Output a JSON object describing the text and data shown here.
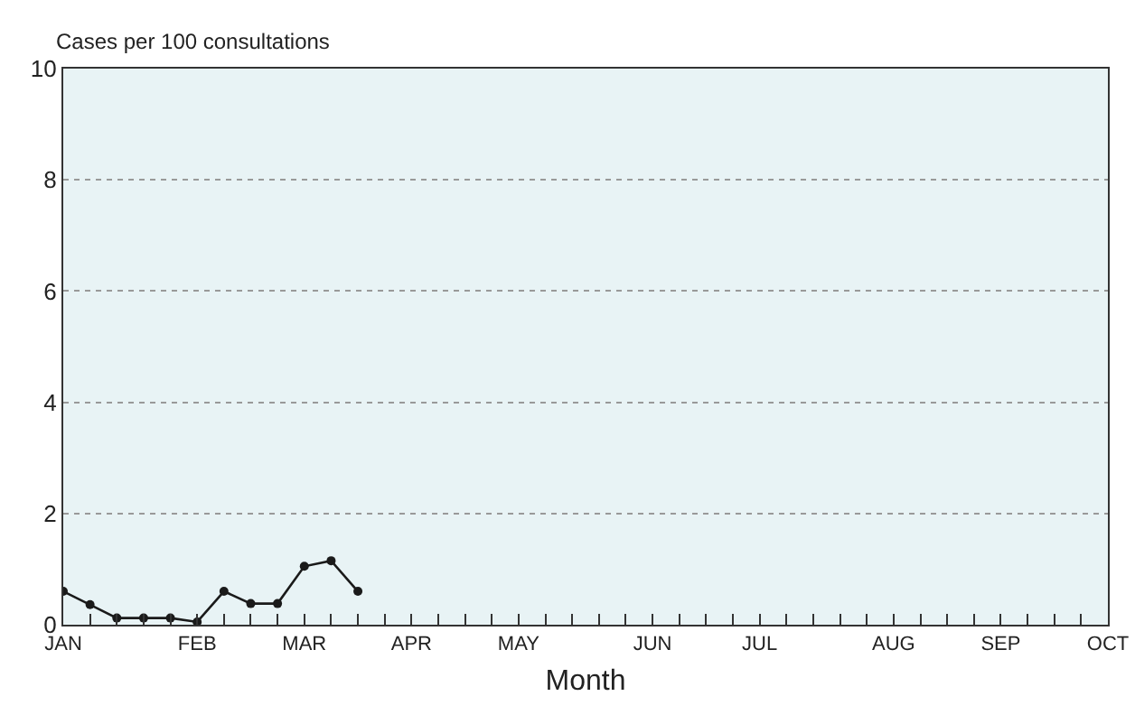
{
  "chart_data": {
    "type": "line",
    "ylabel": "Cases per 100 consultations",
    "xlabel": "Month",
    "categories": [
      "JAN",
      null,
      null,
      null,
      null,
      "FEB",
      null,
      null,
      null,
      "MAR",
      null,
      null,
      null,
      "APR",
      null,
      null,
      null,
      "MAY",
      null,
      null,
      null,
      null,
      "JUN",
      null,
      null,
      null,
      "JUL",
      null,
      null,
      null,
      null,
      "AUG",
      null,
      null,
      null,
      "SEP",
      null,
      null,
      null,
      "OCT"
    ],
    "series": [
      {
        "color": "#1a1a1a",
        "values": [
          0.6,
          0.36,
          0.12,
          0.12,
          0.12,
          0.05,
          0.6,
          0.38,
          0.38,
          1.05,
          1.15,
          0.6,
          null,
          null,
          null,
          null,
          null,
          null,
          null,
          null,
          null,
          null,
          null,
          null,
          null,
          null,
          null,
          null,
          null,
          null,
          null,
          null,
          null,
          null,
          null,
          null,
          null,
          null,
          null,
          null
        ]
      }
    ],
    "ylim": [
      0,
      10
    ],
    "yticks": [
      0,
      2,
      4,
      6,
      8,
      10
    ],
    "grid": "y",
    "marker": "circle",
    "line_style": "solid"
  }
}
